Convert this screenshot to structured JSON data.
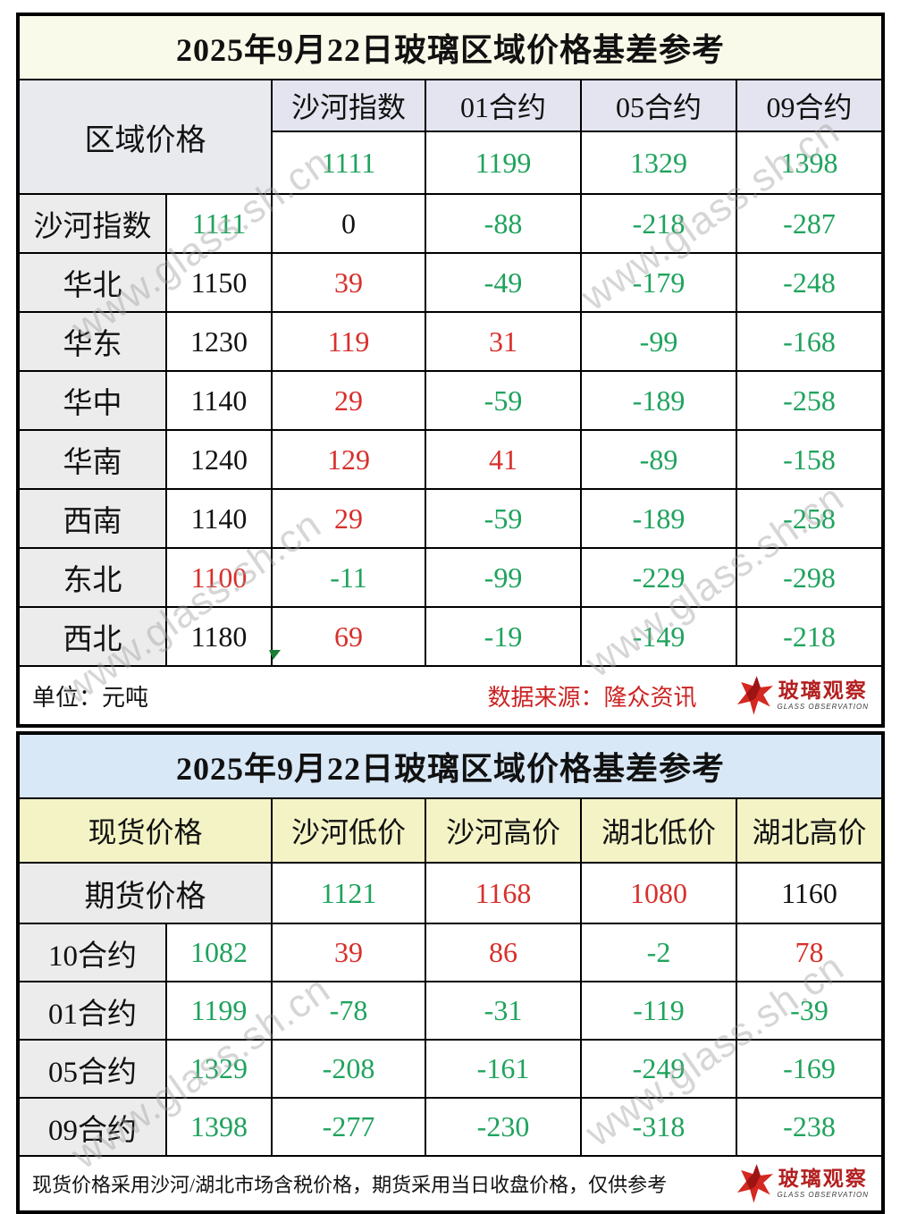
{
  "colors": {
    "green": "#1fa35d",
    "red": "#d8302c",
    "text": "#111111",
    "source_red": "#cc2222",
    "logo_red": "#b32020",
    "title1_bg": "#fafaea",
    "header1_bg": "#e3e4ef",
    "title2_bg": "#d9e8f6",
    "header2_bg": "#f3f3c6",
    "rowlabel_bg": "#ececec",
    "watermark_gray": "#9f9f9f"
  },
  "watermark": {
    "text": "www.glass.sh.cn"
  },
  "logo": {
    "name": "玻璃观察",
    "subname": "GLASS OBSERVATION"
  },
  "table1": {
    "title": "2025年9月22日玻璃区域价格基差参考",
    "corner_label": "区域价格",
    "columns": [
      "沙河指数",
      "01合约",
      "05合约",
      "09合约"
    ],
    "futures_row": [
      {
        "v": "1111",
        "c": "green"
      },
      {
        "v": "1199",
        "c": "green"
      },
      {
        "v": "1329",
        "c": "green"
      },
      {
        "v": "1398",
        "c": "green"
      }
    ],
    "rows": [
      {
        "label": "沙河指数",
        "price": {
          "v": "1111",
          "c": "green"
        },
        "cells": [
          {
            "v": "0",
            "c": "black"
          },
          {
            "v": "-88",
            "c": "green"
          },
          {
            "v": "-218",
            "c": "green"
          },
          {
            "v": "-287",
            "c": "green"
          }
        ]
      },
      {
        "label": "华北",
        "price": {
          "v": "1150",
          "c": "black"
        },
        "cells": [
          {
            "v": "39",
            "c": "red"
          },
          {
            "v": "-49",
            "c": "green"
          },
          {
            "v": "-179",
            "c": "green"
          },
          {
            "v": "-248",
            "c": "green"
          }
        ]
      },
      {
        "label": "华东",
        "price": {
          "v": "1230",
          "c": "black"
        },
        "cells": [
          {
            "v": "119",
            "c": "red"
          },
          {
            "v": "31",
            "c": "red"
          },
          {
            "v": "-99",
            "c": "green"
          },
          {
            "v": "-168",
            "c": "green"
          }
        ]
      },
      {
        "label": "华中",
        "price": {
          "v": "1140",
          "c": "black"
        },
        "cells": [
          {
            "v": "29",
            "c": "red"
          },
          {
            "v": "-59",
            "c": "green"
          },
          {
            "v": "-189",
            "c": "green"
          },
          {
            "v": "-258",
            "c": "green"
          }
        ]
      },
      {
        "label": "华南",
        "price": {
          "v": "1240",
          "c": "black"
        },
        "cells": [
          {
            "v": "129",
            "c": "red"
          },
          {
            "v": "41",
            "c": "red"
          },
          {
            "v": "-89",
            "c": "green"
          },
          {
            "v": "-158",
            "c": "green"
          }
        ]
      },
      {
        "label": "西南",
        "price": {
          "v": "1140",
          "c": "black"
        },
        "cells": [
          {
            "v": "29",
            "c": "red"
          },
          {
            "v": "-59",
            "c": "green"
          },
          {
            "v": "-189",
            "c": "green"
          },
          {
            "v": "-258",
            "c": "green"
          }
        ]
      },
      {
        "label": "东北",
        "price": {
          "v": "1100",
          "c": "red"
        },
        "cells": [
          {
            "v": "-11",
            "c": "green"
          },
          {
            "v": "-99",
            "c": "green"
          },
          {
            "v": "-229",
            "c": "green"
          },
          {
            "v": "-298",
            "c": "green"
          }
        ]
      },
      {
        "label": "西北",
        "price": {
          "v": "1180",
          "c": "black"
        },
        "cells": [
          {
            "v": "69",
            "c": "red"
          },
          {
            "v": "-19",
            "c": "green"
          },
          {
            "v": "-149",
            "c": "green"
          },
          {
            "v": "-218",
            "c": "green"
          }
        ]
      }
    ],
    "footer": {
      "unit": "单位：元吨",
      "source": "数据来源：隆众资讯"
    }
  },
  "table2": {
    "title": "2025年9月22日玻璃区域价格基差参考",
    "corner_label": "现货价格",
    "columns": [
      "沙河低价",
      "沙河高价",
      "湖北低价",
      "湖北高价"
    ],
    "spot_label": "期货价格",
    "spot_row": [
      {
        "v": "1121",
        "c": "green"
      },
      {
        "v": "1168",
        "c": "red"
      },
      {
        "v": "1080",
        "c": "red"
      },
      {
        "v": "1160",
        "c": "black"
      }
    ],
    "rows": [
      {
        "label": "10合约",
        "price": {
          "v": "1082",
          "c": "green"
        },
        "cells": [
          {
            "v": "39",
            "c": "red"
          },
          {
            "v": "86",
            "c": "red"
          },
          {
            "v": "-2",
            "c": "green"
          },
          {
            "v": "78",
            "c": "red"
          }
        ]
      },
      {
        "label": "01合约",
        "price": {
          "v": "1199",
          "c": "green"
        },
        "cells": [
          {
            "v": "-78",
            "c": "green"
          },
          {
            "v": "-31",
            "c": "green"
          },
          {
            "v": "-119",
            "c": "green"
          },
          {
            "v": "-39",
            "c": "green"
          }
        ]
      },
      {
        "label": "05合约",
        "price": {
          "v": "1329",
          "c": "green"
        },
        "cells": [
          {
            "v": "-208",
            "c": "green"
          },
          {
            "v": "-161",
            "c": "green"
          },
          {
            "v": "-249",
            "c": "green"
          },
          {
            "v": "-169",
            "c": "green"
          }
        ]
      },
      {
        "label": "09合约",
        "price": {
          "v": "1398",
          "c": "green"
        },
        "cells": [
          {
            "v": "-277",
            "c": "green"
          },
          {
            "v": "-230",
            "c": "green"
          },
          {
            "v": "-318",
            "c": "green"
          },
          {
            "v": "-238",
            "c": "green"
          }
        ]
      }
    ],
    "footer": {
      "note": "现货价格采用沙河/湖北市场含税价格，期货采用当日收盘价格，仅供参考"
    }
  }
}
